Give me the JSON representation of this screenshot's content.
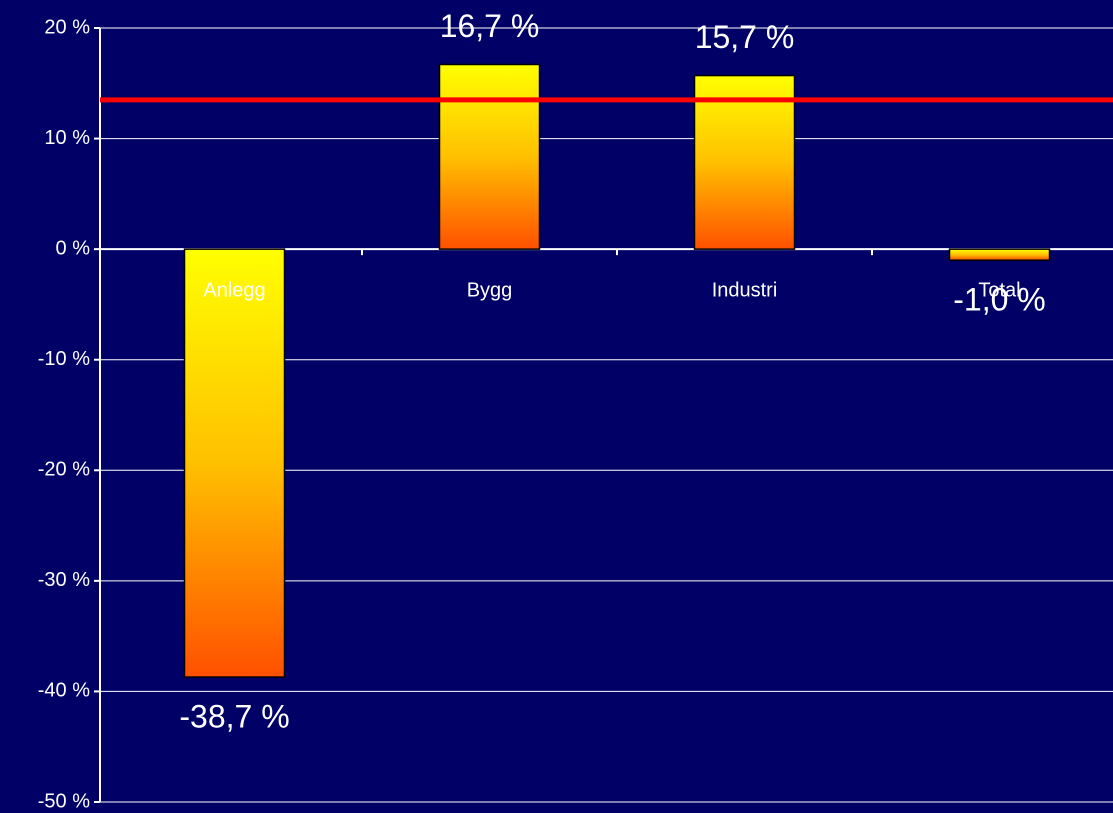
{
  "chart_data": {
    "type": "bar",
    "categories": [
      "Anlegg",
      "Bygg",
      "Industri",
      "Total"
    ],
    "values": [
      -38.7,
      16.7,
      15.7,
      -1.0
    ],
    "value_labels": [
      "-38,7 %",
      "16,7 %",
      "15,7 %",
      "-1,0 %"
    ],
    "ylim": [
      -50,
      20
    ],
    "yticks": [
      {
        "value": -50,
        "label": "-50 %"
      },
      {
        "value": -40,
        "label": "-40 %"
      },
      {
        "value": -30,
        "label": "-30 %"
      },
      {
        "value": -20,
        "label": "-20 %"
      },
      {
        "value": -10,
        "label": "-10 %"
      },
      {
        "value": 0,
        "label": "0 %"
      },
      {
        "value": 10,
        "label": "10 %"
      },
      {
        "value": 20,
        "label": "20 %"
      }
    ],
    "grid": true,
    "reference_line": 13.5,
    "reference_color": "#ff0000",
    "background": "#000066"
  }
}
